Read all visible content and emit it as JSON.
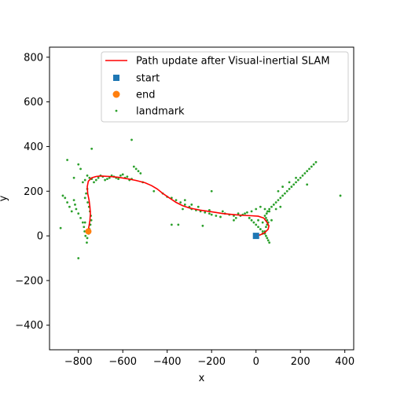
{
  "chart_data": {
    "type": "scatter",
    "title": "",
    "xlabel": "x",
    "ylabel": "y",
    "xlim": [
      -930,
      440
    ],
    "ylim": [
      -510,
      845
    ],
    "x_ticks": [
      -800,
      -600,
      -400,
      -200,
      0,
      200,
      400
    ],
    "x_tick_labels": [
      "−800",
      "−600",
      "−400",
      "−200",
      "0",
      "200",
      "400"
    ],
    "y_ticks": [
      -400,
      -200,
      0,
      200,
      400,
      600,
      800
    ],
    "y_tick_labels": [
      "−400",
      "−200",
      "0",
      "200",
      "400",
      "600",
      "800"
    ],
    "grid": false,
    "legend_position": "upper right",
    "colors": {
      "path": "#ff0000",
      "start": "#1f77b4",
      "end": "#ff7f0e",
      "landmark": "#2ca02c",
      "axes": "#000000"
    },
    "series": [
      {
        "name": "Path update after Visual-inertial SLAM",
        "kind": "line",
        "x": [
          0,
          20,
          40,
          55,
          58,
          50,
          35,
          10,
          -20,
          -60,
          -100,
          -150,
          -200,
          -250,
          -300,
          -330,
          -360,
          -390,
          -420,
          -445,
          -470,
          -500,
          -540,
          -580,
          -620,
          -660,
          -700,
          -720,
          -740,
          -755,
          -760,
          -758,
          -752,
          -748,
          -746,
          -748,
          -752,
          -756,
          -760
        ],
        "y": [
          0,
          5,
          15,
          30,
          45,
          60,
          80,
          88,
          90,
          92,
          95,
          100,
          108,
          115,
          125,
          135,
          150,
          170,
          190,
          210,
          225,
          238,
          248,
          256,
          262,
          266,
          268,
          266,
          260,
          245,
          220,
          190,
          160,
          130,
          100,
          70,
          45,
          25,
          15
        ]
      },
      {
        "name": "start",
        "kind": "marker",
        "marker": "square",
        "x": [
          0
        ],
        "y": [
          0
        ]
      },
      {
        "name": "end",
        "kind": "marker",
        "marker": "circle",
        "x": [
          -755
        ],
        "y": [
          20
        ]
      },
      {
        "name": "landmark",
        "kind": "scatter",
        "x": [
          -850,
          -820,
          -800,
          -790,
          -780,
          -770,
          -760,
          -750,
          -740,
          -730,
          -720,
          -710,
          -700,
          -690,
          -680,
          -670,
          -660,
          -650,
          -640,
          -630,
          -620,
          -610,
          -600,
          -590,
          -580,
          -570,
          -560,
          -550,
          -540,
          -530,
          -520,
          -510,
          -760,
          -765,
          -770,
          -758,
          -752,
          -748,
          -744,
          -742,
          -746,
          -750,
          -754,
          -760,
          -762,
          -768,
          -772,
          -775,
          -780,
          -790,
          -800,
          -810,
          -815,
          -820,
          -830,
          -840,
          -850,
          -860,
          -870,
          -880,
          -800,
          -740,
          -770,
          -560,
          -460,
          -420,
          -400,
          -380,
          -360,
          -340,
          -320,
          -300,
          -290,
          -270,
          -250,
          -230,
          -210,
          -200,
          -180,
          -160,
          -140,
          -120,
          -100,
          -80,
          -60,
          -40,
          -30,
          -20,
          -10,
          0,
          10,
          20,
          30,
          40,
          45,
          50,
          55,
          60,
          55,
          50,
          45,
          40,
          48,
          52,
          60,
          70,
          80,
          90,
          100,
          110,
          120,
          130,
          140,
          150,
          160,
          170,
          180,
          190,
          200,
          210,
          220,
          230,
          240,
          250,
          260,
          270,
          380,
          -320,
          -350,
          -380,
          -200,
          -260,
          -330,
          -290,
          -100,
          -50,
          -20,
          0,
          20,
          40,
          60,
          30,
          10,
          -30,
          -70,
          -90,
          -150,
          -210,
          -240,
          100,
          120,
          150,
          180,
          230,
          110,
          90,
          70,
          50,
          45,
          40,
          30
        ],
        "y": [
          340,
          260,
          320,
          300,
          240,
          250,
          270,
          260,
          255,
          240,
          250,
          260,
          270,
          265,
          250,
          255,
          260,
          270,
          265,
          260,
          255,
          270,
          275,
          260,
          265,
          250,
          255,
          310,
          300,
          290,
          280,
          240,
          210,
          190,
          170,
          150,
          130,
          110,
          90,
          70,
          50,
          30,
          10,
          -10,
          -30,
          0,
          20,
          40,
          60,
          80,
          100,
          120,
          140,
          160,
          110,
          130,
          150,
          170,
          180,
          35,
          -100,
          390,
          60,
          430,
          200,
          190,
          175,
          170,
          160,
          150,
          140,
          130,
          120,
          115,
          110,
          105,
          100,
          95,
          90,
          85,
          100,
          95,
          90,
          100,
          95,
          105,
          80,
          70,
          60,
          50,
          40,
          30,
          20,
          10,
          0,
          -10,
          -20,
          -30,
          60,
          70,
          80,
          90,
          100,
          110,
          120,
          130,
          140,
          150,
          160,
          170,
          180,
          190,
          200,
          210,
          220,
          230,
          240,
          250,
          260,
          270,
          280,
          290,
          300,
          310,
          320,
          330,
          180,
          160,
          50,
          50,
          200,
          130,
          120,
          140,
          70,
          100,
          110,
          120,
          130,
          120,
          110,
          60,
          70,
          80,
          90,
          80,
          110,
          115,
          45,
          200,
          220,
          240,
          260,
          230,
          130,
          120,
          70,
          50,
          40,
          20,
          10
        ]
      }
    ]
  }
}
